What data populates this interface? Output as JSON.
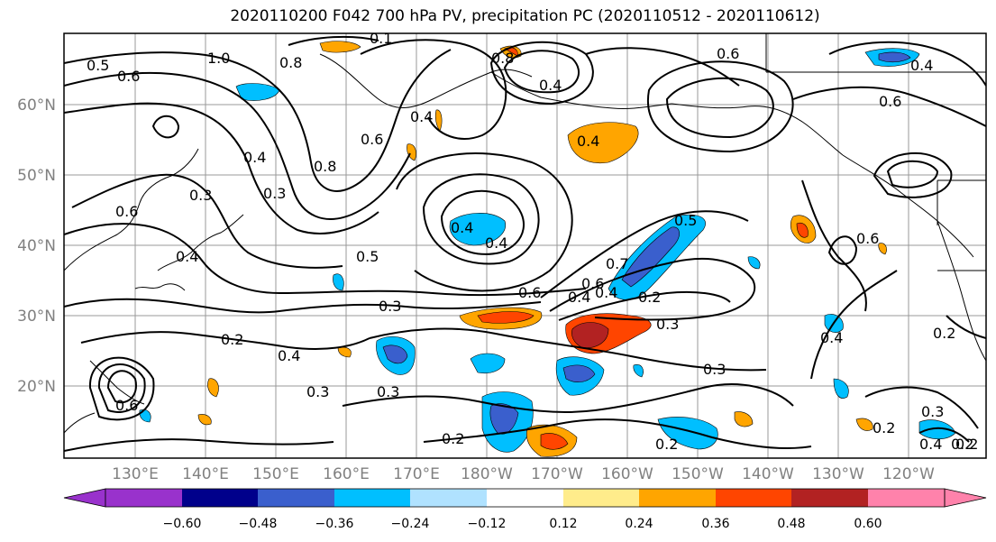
{
  "title": "2020110200 F042 700 hPa PV, precipitation PC (2020110512 - 2020110612)",
  "latitude_labels": [
    "60°N",
    "50°N",
    "40°N",
    "30°N",
    "20°N"
  ],
  "longitude_labels": [
    "130°E",
    "140°E",
    "150°E",
    "160°E",
    "170°E",
    "180°W",
    "170°W",
    "160°W",
    "150°W",
    "140°W",
    "130°W",
    "120°W"
  ],
  "colorbar": {
    "tick_labels": [
      "−0.60",
      "−0.48",
      "−0.36",
      "−0.24",
      "−0.12",
      "0.12",
      "0.24",
      "0.36",
      "0.48",
      "0.60"
    ],
    "colors": [
      "#9932cc",
      "#00008b",
      "#3a5fcd",
      "#00bfff",
      "#b0e2ff",
      "#ffffff",
      "#ffec8b",
      "#ffa500",
      "#ff4500",
      "#b22222",
      "#ff82ab"
    ]
  },
  "contour_labels": [
    "0.5",
    "0.6",
    "1.0",
    "0.8",
    "0.1",
    "0.8",
    "0.4",
    "0.4",
    "0.6",
    "0.8",
    "0.4",
    "0.3",
    "0.6",
    "0.3",
    "0.6",
    "0.4",
    "0.4",
    "0.5",
    "0.4",
    "0.3",
    "0.2",
    "0.4",
    "0.3",
    "0.3",
    "0.4",
    "0.5",
    "0.6",
    "0.4",
    "0.7",
    "0.6",
    "0.4",
    "0.2",
    "0.3",
    "0.3",
    "0.2",
    "0.2",
    "0.6",
    "0.4",
    "0.2",
    "0.3",
    "0.2",
    "0.4",
    "0.2",
    "0.6",
    "0.2",
    "0.6",
    "0.4"
  ]
}
